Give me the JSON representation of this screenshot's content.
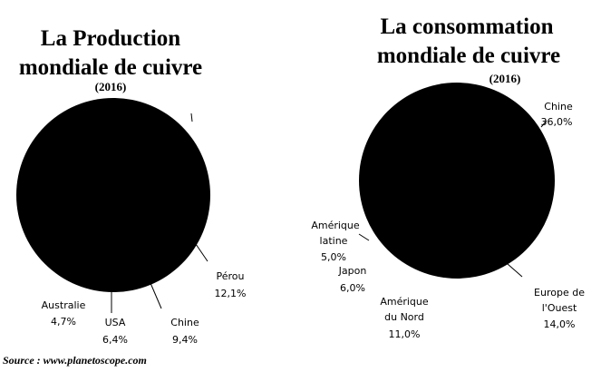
{
  "chart_data": [
    {
      "type": "pie",
      "title_lines": [
        "La Production",
        "mondiale de cuivre"
      ],
      "subtitle": "(2016)",
      "fill_color": "#000000",
      "slices": [
        {
          "label": "Pérou",
          "value_text": "12,1%",
          "value": 12.1
        },
        {
          "label": "Chine",
          "value_text": "9,4%",
          "value": 9.4
        },
        {
          "label": "USA",
          "value_text": "6,4%",
          "value": 6.4
        },
        {
          "label": "Australie",
          "value_text": "4,7%",
          "value": 4.7
        }
      ]
    },
    {
      "type": "pie",
      "title_lines": [
        "La consommation",
        "mondiale de cuivre"
      ],
      "subtitle": "(2016)",
      "fill_color": "#000000",
      "slices": [
        {
          "label": "Chine",
          "value_text": "36,0%",
          "value": 36.0
        },
        {
          "label": "Europe de l'Ouest",
          "label_lines": [
            "Europe de",
            "l'Ouest"
          ],
          "value_text": "14,0%",
          "value": 14.0
        },
        {
          "label": "Amérique du Nord",
          "label_lines": [
            "Amérique",
            "du Nord"
          ],
          "value_text": "11,0%",
          "value": 11.0
        },
        {
          "label": "Japon",
          "value_text": "6,0%",
          "value": 6.0
        },
        {
          "label": "Amérique latine",
          "label_lines": [
            "Amérique",
            "latine"
          ],
          "value_text": "5,0%",
          "value": 5.0
        }
      ]
    }
  ],
  "source": "Source : www.planetoscope.com"
}
